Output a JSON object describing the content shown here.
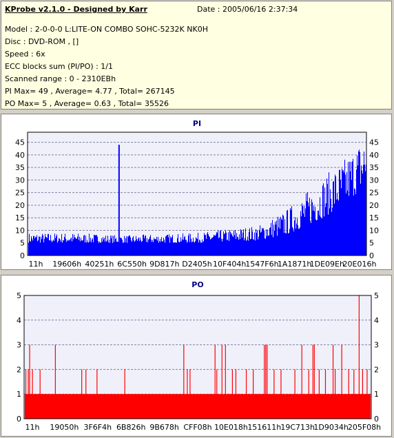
{
  "info": {
    "title": "KProbe v2.1.0 - Designed by Karr",
    "date": "Date : 2005/06/16 2:37:34",
    "lines": [
      "Model : 2-0-0-0 L:LITE-ON COMBO SOHC-5232K NK0H",
      "Disc : DVD-ROM ,  []",
      "Speed : 6x",
      "ECC blocks sum (PI/PO) : 1/1",
      "Scanned range : 0 - 2310EBh",
      "PI Max= 49 , Average= 4.77 , Total= 267145",
      "PO Max= 5 , Average= 0.63 , Total= 35526"
    ]
  },
  "colors": {
    "pi": "#0000ff",
    "po": "#ff0000",
    "plot_bg": "#f0f0fa",
    "grid": "#8080a0"
  },
  "chart_data": [
    {
      "type": "bar",
      "title": "PI",
      "ylim": [
        0,
        49
      ],
      "yticks": [
        0,
        5,
        10,
        15,
        20,
        25,
        30,
        35,
        40,
        45
      ],
      "xticks": [
        "11h",
        "19606h",
        "40251h",
        "6C550h",
        "9D817h",
        "D2405h",
        "10F404h",
        "1547F6h",
        "1A1871h",
        "1DE09Eh",
        "20E016h"
      ],
      "spikes": [
        {
          "fraction": 0.27,
          "value": 44
        }
      ],
      "envelope": [
        {
          "fraction": 0.0,
          "base": 5,
          "peak": 9
        },
        {
          "fraction": 0.14,
          "base": 5,
          "peak": 9
        },
        {
          "fraction": 0.28,
          "base": 5,
          "peak": 8
        },
        {
          "fraction": 0.5,
          "base": 5,
          "peak": 9
        },
        {
          "fraction": 0.68,
          "base": 6,
          "peak": 12
        },
        {
          "fraction": 0.76,
          "base": 8,
          "peak": 18
        },
        {
          "fraction": 0.86,
          "base": 14,
          "peak": 30
        },
        {
          "fraction": 0.93,
          "base": 20,
          "peak": 38
        },
        {
          "fraction": 1.0,
          "base": 28,
          "peak": 49
        }
      ]
    },
    {
      "type": "bar",
      "title": "PO",
      "ylim": [
        0,
        5
      ],
      "yticks": [
        0,
        1,
        2,
        3,
        4,
        5
      ],
      "xticks": [
        "11h",
        "19050h",
        "3F6F4h",
        "6B826h",
        "9B678h",
        "CFF08h",
        "10E018h",
        "151611h",
        "19C713h",
        "1D9034h",
        "205F08h"
      ],
      "baseline_value": 1,
      "spikes": [
        {
          "fraction": 0.005,
          "value": 2
        },
        {
          "fraction": 0.012,
          "value": 2
        },
        {
          "fraction": 0.016,
          "value": 3
        },
        {
          "fraction": 0.024,
          "value": 2
        },
        {
          "fraction": 0.046,
          "value": 2
        },
        {
          "fraction": 0.09,
          "value": 3
        },
        {
          "fraction": 0.166,
          "value": 2
        },
        {
          "fraction": 0.178,
          "value": 2
        },
        {
          "fraction": 0.21,
          "value": 2
        },
        {
          "fraction": 0.29,
          "value": 2
        },
        {
          "fraction": 0.46,
          "value": 3
        },
        {
          "fraction": 0.47,
          "value": 2
        },
        {
          "fraction": 0.478,
          "value": 2
        },
        {
          "fraction": 0.55,
          "value": 3
        },
        {
          "fraction": 0.555,
          "value": 2
        },
        {
          "fraction": 0.57,
          "value": 3
        },
        {
          "fraction": 0.58,
          "value": 3
        },
        {
          "fraction": 0.6,
          "value": 2
        },
        {
          "fraction": 0.61,
          "value": 2
        },
        {
          "fraction": 0.64,
          "value": 2
        },
        {
          "fraction": 0.66,
          "value": 2
        },
        {
          "fraction": 0.692,
          "value": 3
        },
        {
          "fraction": 0.696,
          "value": 3
        },
        {
          "fraction": 0.7,
          "value": 3
        },
        {
          "fraction": 0.72,
          "value": 2
        },
        {
          "fraction": 0.74,
          "value": 2
        },
        {
          "fraction": 0.78,
          "value": 2
        },
        {
          "fraction": 0.8,
          "value": 3
        },
        {
          "fraction": 0.82,
          "value": 2
        },
        {
          "fraction": 0.832,
          "value": 3
        },
        {
          "fraction": 0.836,
          "value": 3
        },
        {
          "fraction": 0.85,
          "value": 2
        },
        {
          "fraction": 0.868,
          "value": 2
        },
        {
          "fraction": 0.89,
          "value": 3
        },
        {
          "fraction": 0.896,
          "value": 2
        },
        {
          "fraction": 0.915,
          "value": 3
        },
        {
          "fraction": 0.935,
          "value": 2
        },
        {
          "fraction": 0.95,
          "value": 2
        },
        {
          "fraction": 0.965,
          "value": 5
        },
        {
          "fraction": 0.975,
          "value": 2
        },
        {
          "fraction": 0.988,
          "value": 2
        }
      ]
    }
  ]
}
